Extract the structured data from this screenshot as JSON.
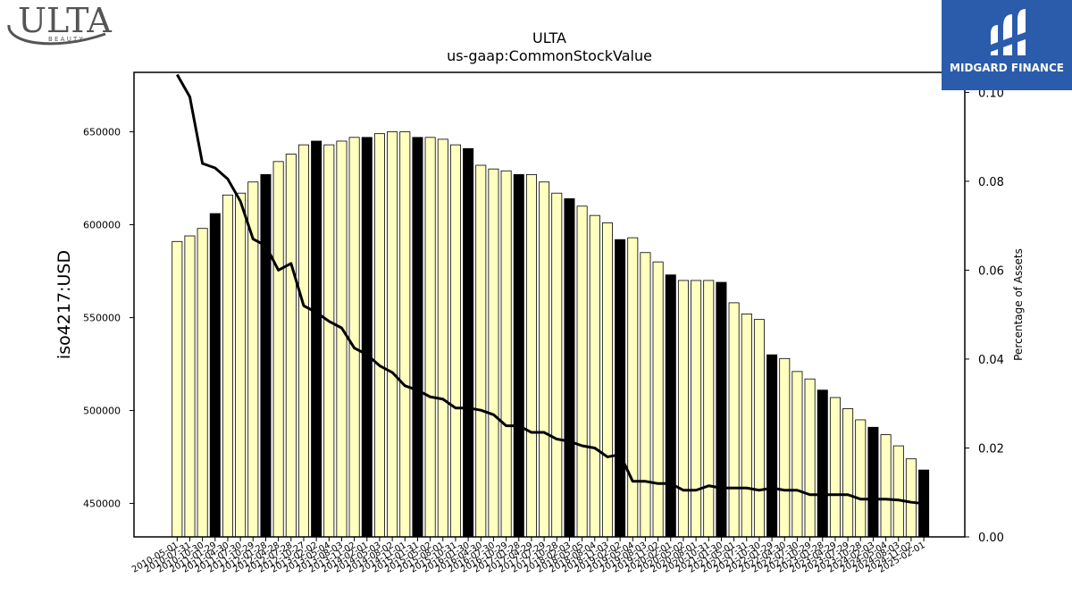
{
  "header": {
    "title": "ULTA",
    "subtitle": "us-gaap:CommonStockValue"
  },
  "logos": {
    "left_text": "ULTA",
    "left_sub": "B E A U T Y",
    "right_text": "MIDGARD FINANCE",
    "right_bg": "#2b5cab"
  },
  "colors": {
    "bar_light": "#ffffc0",
    "bar_dark": "#000000",
    "line": "#000000"
  },
  "chart_data": {
    "type": "bar",
    "title": "ULTA",
    "subtitle": "us-gaap:CommonStockValue",
    "ylabel": "iso4217:USD",
    "y2label": "Percentage of Assets",
    "ylim": [
      432000,
      682000
    ],
    "y2lim": [
      0.0,
      0.1045
    ],
    "yticks": [
      450000,
      500000,
      550000,
      600000,
      650000
    ],
    "y2ticks": [
      0.0,
      0.02,
      0.04,
      0.06,
      0.08,
      0.1
    ],
    "categories": [
      "2010-05-01",
      "2010-07-31",
      "2010-10-30",
      "2011-01-29",
      "2011-04-30",
      "2011-07-30",
      "2011-10-29",
      "2012-01-28",
      "2012-04-28",
      "2012-07-28",
      "2012-10-27",
      "2013-02-02",
      "2013-05-04",
      "2013-08-03",
      "2013-11-02",
      "2014-02-01",
      "2014-05-03",
      "2014-08-02",
      "2014-11-01",
      "2015-01-31",
      "2015-05-02",
      "2015-08-01",
      "2015-10-31",
      "2016-01-30",
      "2016-04-30",
      "2016-07-30",
      "2016-10-29",
      "2017-01-28",
      "2017-04-29",
      "2017-07-29",
      "2017-10-28",
      "2018-02-03",
      "2018-05-05",
      "2018-08-04",
      "2018-11-03",
      "2019-02-02",
      "2019-05-04",
      "2019-08-03",
      "2019-11-02",
      "2020-02-01",
      "2020-05-02",
      "2020-08-01",
      "2020-10-31",
      "2021-01-30",
      "2021-05-01",
      "2021-07-31",
      "2021-10-30",
      "2022-01-29",
      "2022-04-30",
      "2022-07-30",
      "2022-10-29",
      "2023-01-28",
      "2023-04-29",
      "2023-07-29",
      "2023-10-28",
      "2024-02-03",
      "2024-05-04",
      "2024-08-03",
      "2024-11-02",
      "2025-02-01"
    ],
    "values": [
      591000,
      594000,
      598000,
      606000,
      616000,
      617000,
      623000,
      627000,
      634000,
      638000,
      643000,
      645000,
      643000,
      645000,
      647000,
      647000,
      649000,
      650000,
      650000,
      647000,
      647000,
      646000,
      643000,
      641000,
      632000,
      630000,
      629000,
      627000,
      627000,
      623000,
      617000,
      614000,
      610000,
      605000,
      601000,
      592000,
      593000,
      585000,
      580000,
      573000,
      570000,
      570000,
      570000,
      569000,
      558000,
      552000,
      549000,
      530000,
      528000,
      521000,
      517000,
      511000,
      507000,
      501000,
      495000,
      491000,
      487000,
      481000,
      474000,
      468000
    ],
    "dark_indices": [
      3,
      7,
      11,
      15,
      19,
      23,
      27,
      31,
      35,
      39,
      43,
      47,
      51,
      55,
      59
    ],
    "series": [
      {
        "name": "Percentage of Assets",
        "type": "line",
        "values": [
          0.104,
          0.099,
          0.084,
          0.083,
          0.0805,
          0.0755,
          0.067,
          0.0655,
          0.06,
          0.0615,
          0.052,
          0.0505,
          0.0485,
          0.047,
          0.0425,
          0.041,
          0.0385,
          0.037,
          0.034,
          0.033,
          0.0315,
          0.031,
          0.029,
          0.029,
          0.0285,
          0.0275,
          0.025,
          0.025,
          0.0235,
          0.0235,
          0.022,
          0.0215,
          0.0205,
          0.02,
          0.018,
          0.0185,
          0.0125,
          0.0125,
          0.012,
          0.012,
          0.0105,
          0.0105,
          0.0115,
          0.011,
          0.011,
          0.011,
          0.0105,
          0.011,
          0.0105,
          0.0105,
          0.0095,
          0.0095,
          0.0095,
          0.0095,
          0.0085,
          0.0085,
          0.0085,
          0.0083,
          0.0078,
          0.0075
        ]
      }
    ]
  }
}
